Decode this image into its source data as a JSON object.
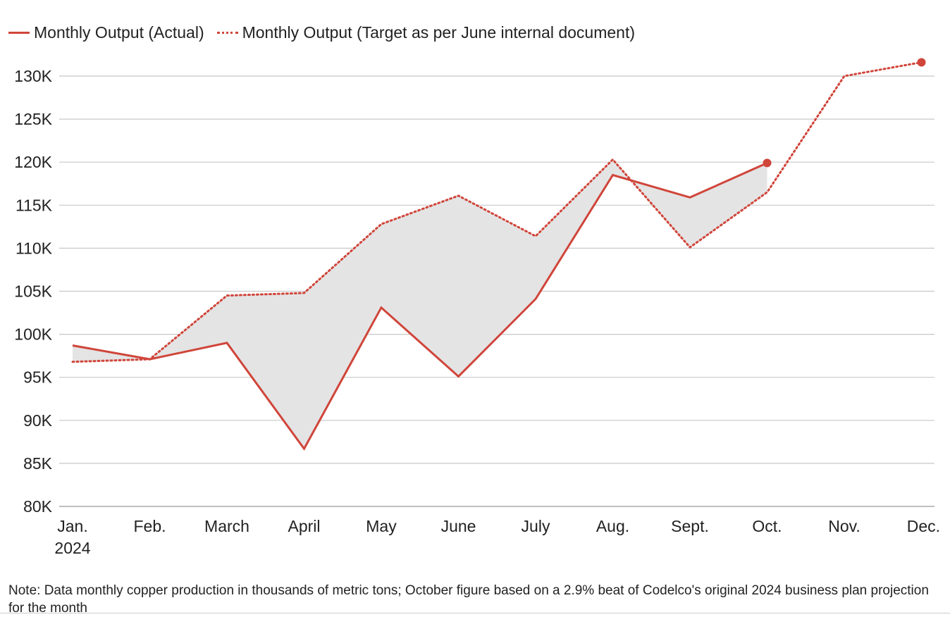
{
  "legend": {
    "actual_label": "Monthly Output (Actual)",
    "target_label": "Monthly Output (Target as per June internal document)"
  },
  "note": "Note: Data monthly copper production in thousands of metric tons; October figure based on a 2.9% beat of Codelco's original 2024 business plan projection for the month",
  "colors": {
    "series": "#d0453a",
    "fill": "#e4e4e4",
    "grid": "#c8c8c8",
    "axis": "#aaaaaa",
    "text": "#222222"
  },
  "chart_data": {
    "type": "line",
    "categories": [
      "Jan.",
      "Feb.",
      "March",
      "April",
      "May",
      "June",
      "July",
      "Aug.",
      "Sept.",
      "Oct.",
      "Nov.",
      "Dec."
    ],
    "year_label": "2024",
    "y_tick_labels": [
      "80K",
      "85K",
      "90K",
      "95K",
      "100K",
      "105K",
      "110K",
      "115K",
      "120K",
      "125K",
      "130K"
    ],
    "y_ticks": [
      80000,
      85000,
      90000,
      95000,
      100000,
      105000,
      110000,
      115000,
      120000,
      125000,
      130000
    ],
    "ylim": [
      80000,
      130000
    ],
    "grid": true,
    "legend_position": "top-left",
    "series": [
      {
        "name": "Monthly Output (Actual)",
        "style": "solid",
        "values": [
          98700,
          97100,
          99000,
          86700,
          103100,
          95100,
          104100,
          118500,
          115900,
          119900,
          null,
          null
        ]
      },
      {
        "name": "Monthly Output (Target as per June internal document)",
        "style": "dotted",
        "values": [
          96800,
          97100,
          104500,
          104800,
          112800,
          116100,
          111400,
          120300,
          110100,
          116500,
          130000,
          131600
        ]
      }
    ],
    "shaded_between_series": true
  }
}
